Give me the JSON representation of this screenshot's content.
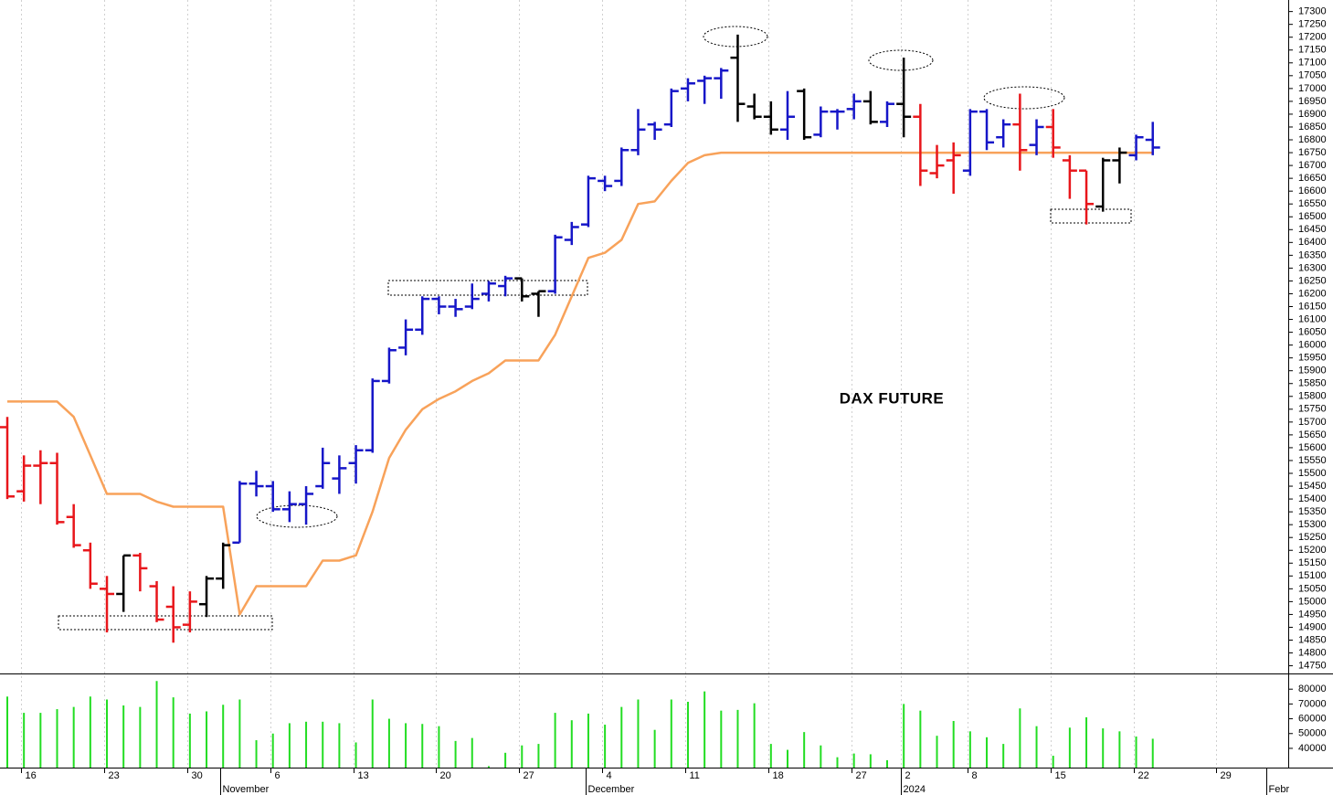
{
  "chart_data": {
    "type": "ohlc",
    "annotation": "DAX FUTURE",
    "categories": [
      null,
      "16",
      null,
      null,
      null,
      null,
      "23",
      null,
      null,
      null,
      null,
      "30",
      null,
      null,
      null,
      null,
      "6",
      null,
      null,
      null,
      null,
      "13",
      null,
      null,
      null,
      null,
      "20",
      null,
      null,
      null,
      null,
      "27",
      null,
      null,
      null,
      null,
      "4",
      null,
      null,
      null,
      null,
      "11",
      null,
      null,
      null,
      null,
      "18",
      null,
      null,
      null,
      null,
      "27",
      null,
      null,
      "2",
      null,
      null,
      null,
      "8",
      null,
      null,
      null,
      null,
      "15",
      null,
      null,
      null,
      null,
      "22",
      null,
      null,
      null,
      null,
      "29",
      null,
      null,
      null
    ],
    "month_labels": [
      null,
      null,
      null,
      null,
      null,
      null,
      null,
      null,
      null,
      null,
      null,
      null,
      null,
      "November",
      null,
      null,
      null,
      null,
      null,
      null,
      null,
      null,
      null,
      null,
      null,
      null,
      null,
      null,
      null,
      null,
      null,
      null,
      null,
      null,
      null,
      "December",
      null,
      null,
      null,
      null,
      null,
      null,
      null,
      null,
      null,
      null,
      null,
      null,
      null,
      null,
      null,
      null,
      null,
      null,
      "2024",
      null,
      null,
      null,
      null,
      null,
      null,
      null,
      null,
      null,
      null,
      null,
      null,
      null,
      null,
      null,
      null,
      null,
      null,
      null,
      null,
      null,
      "Febr"
    ],
    "open": [
      15680,
      15430,
      15530,
      15540,
      15330,
      15200,
      15050,
      15030,
      15180,
      15060,
      14980,
      14910,
      14990,
      15090,
      15230,
      15460,
      15450,
      15360,
      15380,
      15450,
      15480,
      15540,
      15590,
      15860,
      15990,
      16060,
      16180,
      16150,
      16150,
      16200,
      16230,
      16260,
      16200,
      16210,
      16410,
      16470,
      16640,
      16640,
      16760,
      16860,
      16860,
      17000,
      17030,
      17040,
      17120,
      16930,
      16890,
      16840,
      16990,
      16820,
      16910,
      16920,
      16950,
      16870,
      16940,
      16890,
      16670,
      16720,
      16680,
      16910,
      16810,
      16860,
      16780,
      16850,
      16720,
      16680,
      16540,
      16720,
      16740,
      16800,
      null,
      null,
      null,
      null,
      null,
      null,
      null
    ],
    "high": [
      15720,
      15570,
      15590,
      15580,
      15380,
      15230,
      15100,
      15180,
      15190,
      15080,
      15060,
      15040,
      15100,
      15230,
      15470,
      15510,
      15470,
      15430,
      15450,
      15600,
      15570,
      15610,
      15870,
      15990,
      16100,
      16190,
      16190,
      16180,
      16240,
      16250,
      16270,
      16260,
      16210,
      16430,
      16480,
      16660,
      16660,
      16770,
      16920,
      16870,
      17000,
      17040,
      17050,
      17080,
      17210,
      16980,
      16950,
      16990,
      17000,
      16930,
      16920,
      16980,
      16990,
      16950,
      17120,
      16940,
      16780,
      16790,
      16920,
      16920,
      16880,
      16980,
      16880,
      16920,
      16740,
      16680,
      16730,
      16770,
      16820,
      16870,
      null,
      null,
      null,
      null,
      null,
      null,
      null
    ],
    "low": [
      15400,
      15390,
      15380,
      15300,
      15210,
      15050,
      14880,
      14960,
      15040,
      14920,
      14840,
      14880,
      14940,
      15050,
      15230,
      15410,
      15350,
      15310,
      15300,
      15440,
      15420,
      15460,
      15580,
      15850,
      15960,
      16040,
      16120,
      16110,
      16140,
      16170,
      16190,
      16170,
      16110,
      16200,
      16390,
      16460,
      16600,
      16620,
      16740,
      16800,
      16850,
      16950,
      16940,
      16960,
      16870,
      16880,
      16820,
      16800,
      16800,
      16810,
      16840,
      16880,
      16860,
      16850,
      16810,
      16620,
      16650,
      16590,
      16660,
      16760,
      16770,
      16680,
      16740,
      16730,
      16570,
      16470,
      16520,
      16630,
      16720,
      16740,
      null,
      null,
      null,
      null,
      null,
      null,
      null
    ],
    "close": [
      15410,
      15530,
      15540,
      15310,
      15220,
      15070,
      15030,
      15180,
      15130,
      14930,
      14900,
      15000,
      15090,
      15220,
      15460,
      15450,
      15360,
      15380,
      15420,
      15540,
      15520,
      15590,
      15860,
      15980,
      16060,
      16180,
      16150,
      16140,
      16180,
      16240,
      16260,
      16190,
      16210,
      16420,
      16460,
      16650,
      16620,
      16760,
      16840,
      16840,
      16990,
      17020,
      17040,
      17070,
      16940,
      16890,
      16840,
      16890,
      16810,
      16910,
      16910,
      16950,
      16870,
      16940,
      16890,
      16680,
      16700,
      16740,
      16910,
      16790,
      16860,
      16760,
      16850,
      16770,
      16680,
      16550,
      16720,
      16750,
      16810,
      16770,
      null,
      null,
      null,
      null,
      null,
      null,
      null
    ],
    "colors": [
      "#e8161b",
      "#e8161b",
      "#e8161b",
      "#e8161b",
      "#e8161b",
      "#e8161b",
      "#e8161b",
      "#000000",
      "#e8161b",
      "#e8161b",
      "#e8161b",
      "#e8161b",
      "#000000",
      "#000000",
      "#1616c8",
      "#1616c8",
      "#1616c8",
      "#1616c8",
      "#1616c8",
      "#1616c8",
      "#1616c8",
      "#1616c8",
      "#1616c8",
      "#1616c8",
      "#1616c8",
      "#1616c8",
      "#1616c8",
      "#1616c8",
      "#1616c8",
      "#1616c8",
      "#1616c8",
      "#000000",
      "#000000",
      "#1616c8",
      "#1616c8",
      "#1616c8",
      "#1616c8",
      "#1616c8",
      "#1616c8",
      "#1616c8",
      "#1616c8",
      "#1616c8",
      "#1616c8",
      "#1616c8",
      "#000000",
      "#000000",
      "#000000",
      "#1616c8",
      "#000000",
      "#1616c8",
      "#1616c8",
      "#1616c8",
      "#000000",
      "#1616c8",
      "#000000",
      "#e8161b",
      "#e8161b",
      "#e8161b",
      "#1616c8",
      "#1616c8",
      "#1616c8",
      "#e8161b",
      "#1616c8",
      "#e8161b",
      "#e8161b",
      "#e8161b",
      "#000000",
      "#000000",
      "#1616c8",
      "#1616c8",
      null,
      null,
      null,
      null,
      null,
      null,
      null
    ],
    "stop_line": {
      "color": "#f8a25a",
      "values": [
        15780,
        15780,
        15780,
        15780,
        15720,
        15570,
        15420,
        15420,
        15420,
        15390,
        15370,
        15370,
        15370,
        15370,
        14950,
        15060,
        15060,
        15060,
        15060,
        15160,
        15160,
        15180,
        15350,
        15560,
        15670,
        15750,
        15790,
        15820,
        15860,
        15890,
        15940,
        15940,
        15940,
        16040,
        16190,
        16340,
        16360,
        16410,
        16550,
        16560,
        16640,
        16710,
        16740,
        16750,
        16750,
        16750,
        16750,
        16750,
        16750,
        16750,
        16750,
        16750,
        16750,
        16750,
        16750,
        16750,
        16750,
        16750,
        16750,
        16750,
        16750,
        16750,
        16750,
        16750,
        16750,
        16750,
        16750,
        16750,
        16750,
        16750,
        null,
        null,
        null,
        null,
        null,
        null,
        null
      ]
    },
    "ylim": [
      14720,
      17345
    ],
    "yticks": [
      14750,
      14800,
      14850,
      14900,
      14950,
      15000,
      15050,
      15100,
      15150,
      15200,
      15250,
      15300,
      15350,
      15400,
      15450,
      15500,
      15550,
      15600,
      15650,
      15700,
      15750,
      15800,
      15850,
      15900,
      15950,
      16000,
      16050,
      16100,
      16150,
      16200,
      16250,
      16300,
      16350,
      16400,
      16450,
      16500,
      16550,
      16600,
      16650,
      16700,
      16750,
      16800,
      16850,
      16900,
      16950,
      17000,
      17050,
      17100,
      17150,
      17200,
      17250,
      17300
    ],
    "grid": true,
    "volume": {
      "color": "#22dd22",
      "ylim": [
        27000,
        90000
      ],
      "yticks": [
        40000,
        50000,
        60000,
        70000,
        80000
      ],
      "values": [
        75000,
        64000,
        64000,
        66500,
        68000,
        75000,
        73000,
        69000,
        68000,
        85500,
        74500,
        63500,
        65000,
        69500,
        73000,
        45500,
        50000,
        57000,
        58000,
        58000,
        57000,
        44000,
        73000,
        60000,
        57000,
        56500,
        55000,
        45000,
        47000,
        28000,
        37000,
        42000,
        43000,
        64000,
        59000,
        63500,
        56000,
        68000,
        73000,
        52500,
        73000,
        71500,
        78500,
        65500,
        66000,
        70500,
        43000,
        39000,
        51000,
        42000,
        34000,
        36500,
        36000,
        32000,
        70000,
        65500,
        48500,
        58500,
        51500,
        47500,
        43000,
        67000,
        55000,
        35000,
        54000,
        61000,
        53500,
        51500,
        48000,
        46500,
        null,
        null,
        null,
        null,
        null,
        null,
        null
      ]
    }
  }
}
